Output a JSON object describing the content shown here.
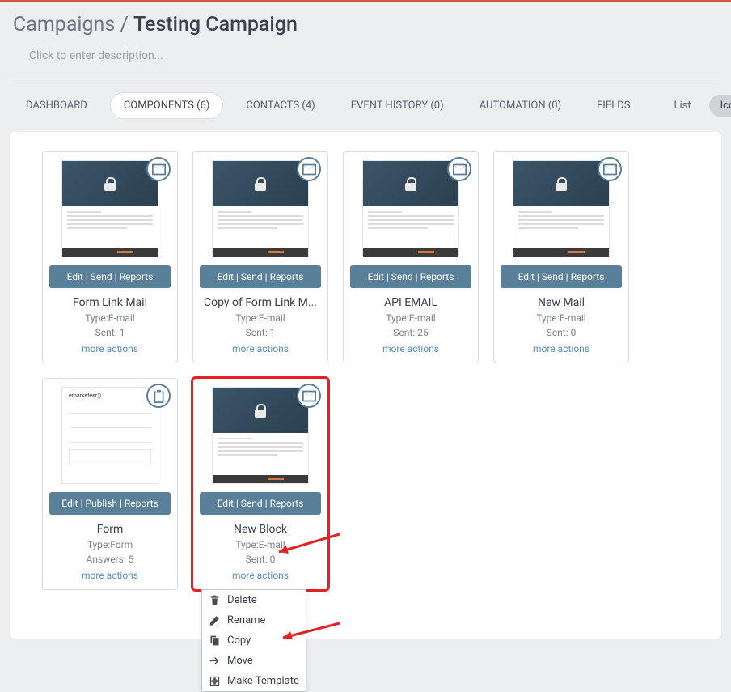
{
  "breadcrumb": {
    "parent": "Campaigns",
    "sep": " / ",
    "current": "Testing Campaign"
  },
  "description_placeholder": "Click to enter description...",
  "tabs": [
    {
      "label": "DASHBOARD",
      "active": false
    },
    {
      "label": "COMPONENTS (6)",
      "active": true
    },
    {
      "label": "CONTACTS (4)",
      "active": false
    },
    {
      "label": "EVENT HISTORY (0)",
      "active": false
    },
    {
      "label": "AUTOMATION (0)",
      "active": false
    },
    {
      "label": "FIELDS",
      "active": false
    }
  ],
  "view": {
    "list": "List",
    "icons": "Icons",
    "active": "icons"
  },
  "colors": {
    "accent": "#5a7f99",
    "highlight": "#e42020",
    "link": "#5a8fc7",
    "top_border": "#c85a4a"
  },
  "cards": [
    {
      "kind": "mail",
      "actions": "Edit | Send | Reports",
      "title": "Form Link Mail",
      "type": "Type:E-mail",
      "stat": "Sent: 1",
      "more": "more actions"
    },
    {
      "kind": "mail",
      "actions": "Edit | Send | Reports",
      "title": "Copy of Form Link M...",
      "type": "Type:E-mail",
      "stat": "Sent: 1",
      "more": "more actions"
    },
    {
      "kind": "mail",
      "actions": "Edit | Send | Reports",
      "title": "API EMAIL",
      "type": "Type:E-mail",
      "stat": "Sent: 25",
      "more": "more actions"
    },
    {
      "kind": "mail",
      "actions": "Edit | Send | Reports",
      "title": "New Mail",
      "type": "Type:E-mail",
      "stat": "Sent: 0",
      "more": "more actions"
    },
    {
      "kind": "form",
      "actions": "Edit | Publish | Reports",
      "title": "Form",
      "type": "Type:Form",
      "stat": "Answers: 5",
      "more": "more actions"
    },
    {
      "kind": "mail",
      "actions": "Edit | Send | Reports",
      "title": "New Block",
      "type": "Type:E-mail",
      "stat": "Sent: 0",
      "more": "more actions",
      "highlighted": true,
      "open_menu": true
    }
  ],
  "menu": [
    {
      "icon": "trash",
      "label": "Delete"
    },
    {
      "icon": "pencil",
      "label": "Rename"
    },
    {
      "icon": "copy",
      "label": "Copy"
    },
    {
      "icon": "arrow-right",
      "label": "Move"
    },
    {
      "icon": "template",
      "label": "Make Template"
    }
  ]
}
